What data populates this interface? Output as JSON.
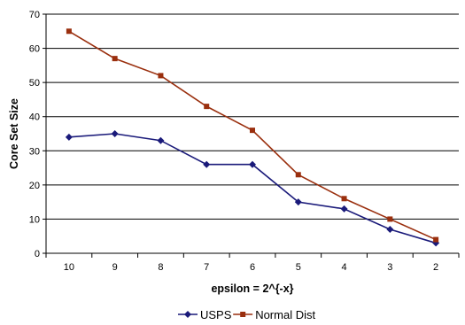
{
  "chart_data": {
    "type": "line",
    "title": "",
    "xlabel": "epsilon = 2^{-x}",
    "ylabel": "Core Set Size",
    "categories": [
      "10",
      "9",
      "8",
      "7",
      "6",
      "5",
      "4",
      "3",
      "2"
    ],
    "ylim": [
      0,
      70
    ],
    "yticks": [
      0,
      10,
      20,
      30,
      40,
      50,
      60,
      70
    ],
    "grid": "horizontal",
    "legend_position": "bottom",
    "series": [
      {
        "name": "USPS",
        "color": "#1A1A7A",
        "marker": "diamond",
        "values": [
          34,
          35,
          33,
          26,
          26,
          15,
          13,
          7,
          3
        ]
      },
      {
        "name": "Normal Dist",
        "color": "#9A2F0E",
        "marker": "square",
        "values": [
          65,
          57,
          52,
          43,
          36,
          23,
          16,
          10,
          4
        ]
      }
    ]
  }
}
